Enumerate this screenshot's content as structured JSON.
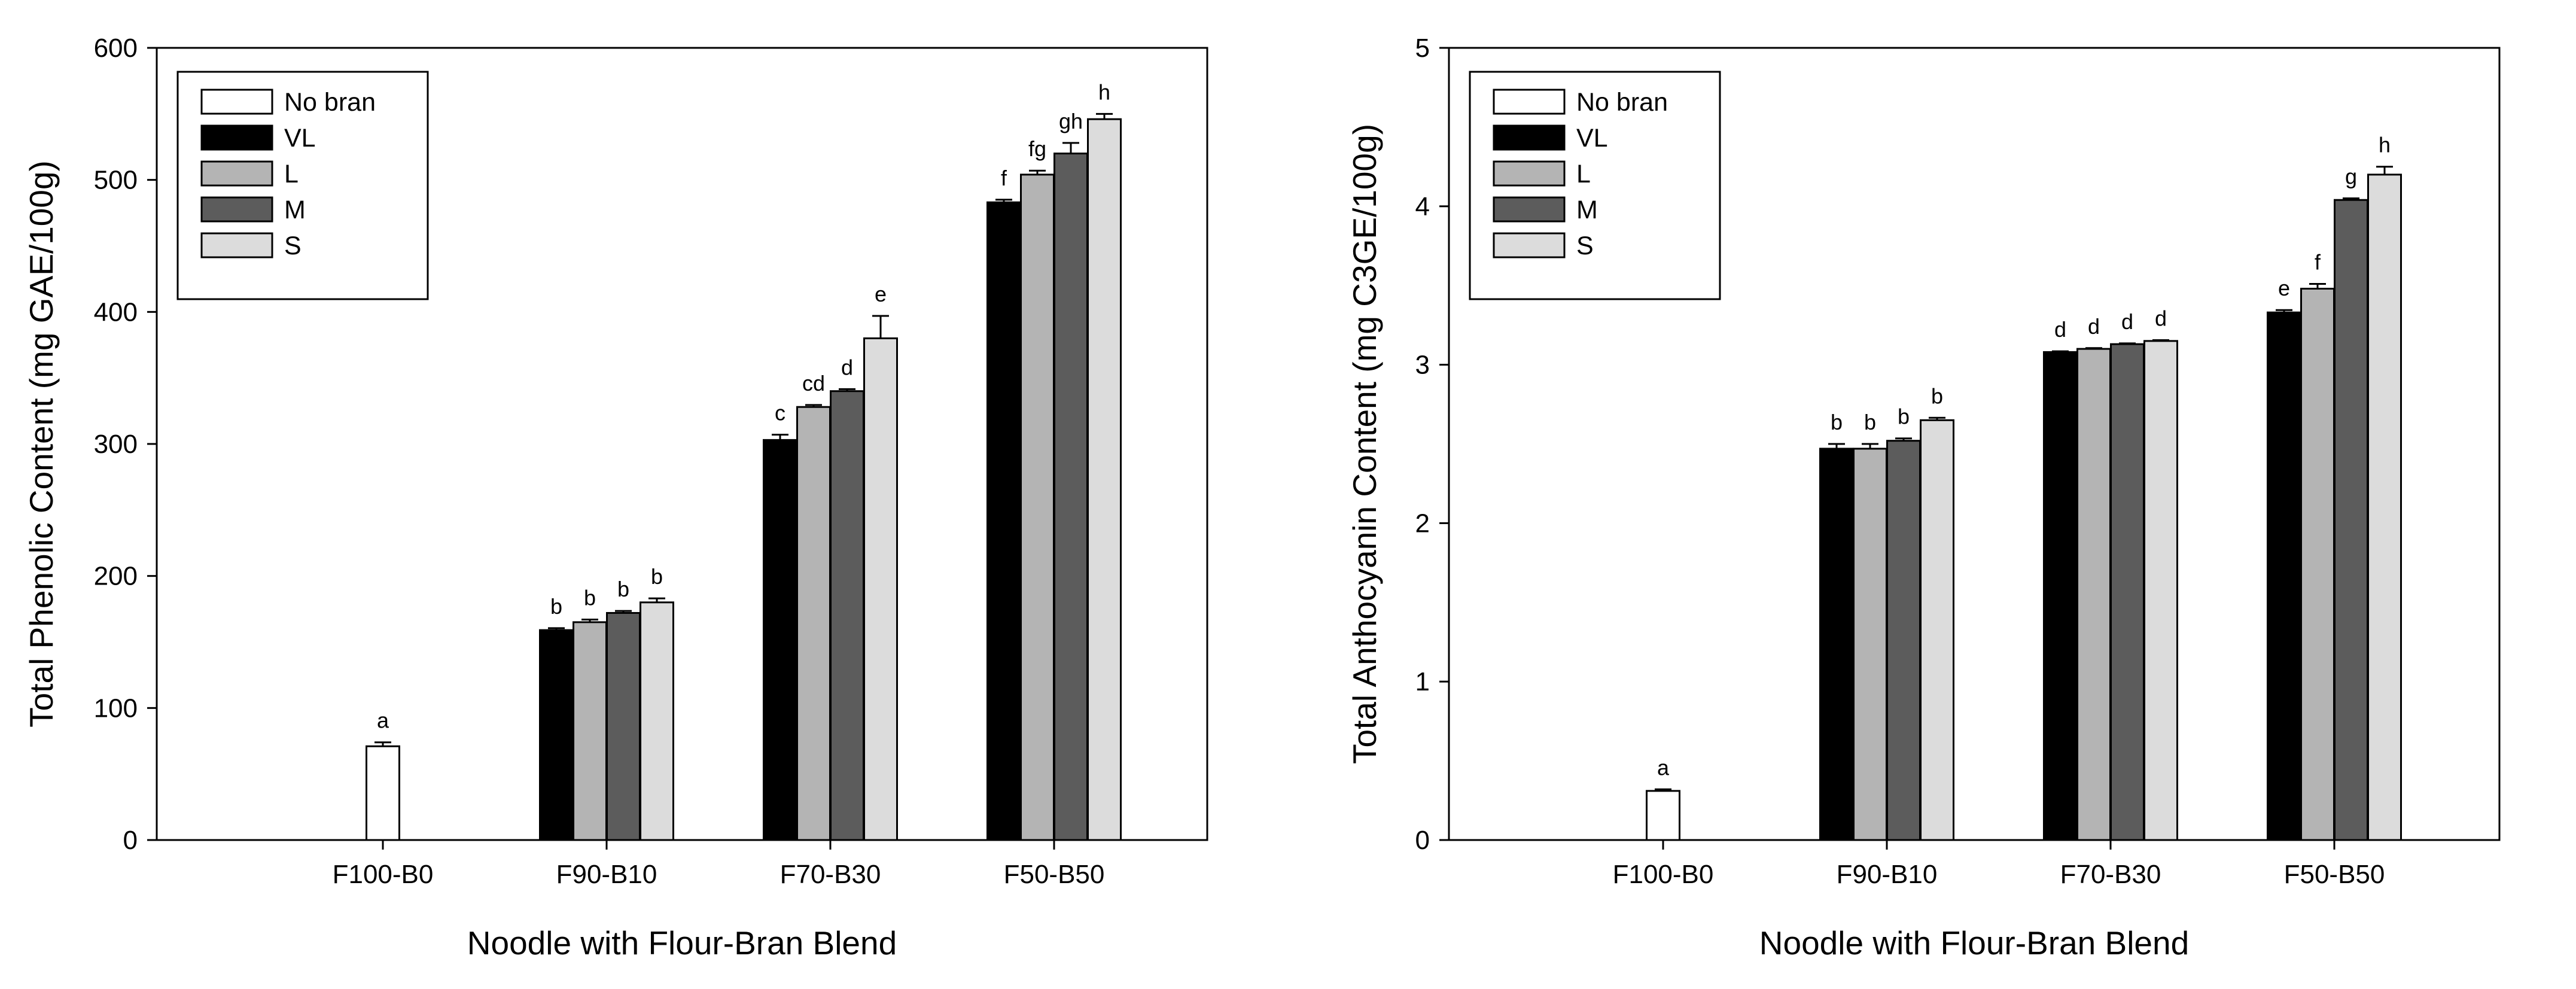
{
  "charts": [
    {
      "chart_data": {
        "type": "bar",
        "categories": [
          "F100-B0",
          "F90-B10",
          "F70-B30",
          "F50-B50"
        ],
        "xlabel": "Noodle with Flour-Bran Blend",
        "ylabel": "Total Phenolic Content (mg GAE/100g)",
        "ylim": [
          0,
          600
        ],
        "yticks": [
          0,
          100,
          200,
          300,
          400,
          500,
          600
        ],
        "grid": false,
        "legend_position": "top-left",
        "series": [
          {
            "name": "No bran",
            "color": "#ffffff",
            "values": [
              71,
              null,
              null,
              null
            ],
            "errors": [
              3,
              null,
              null,
              null
            ],
            "labels": [
              "a",
              "",
              "",
              ""
            ]
          },
          {
            "name": "VL",
            "color": "#000000",
            "values": [
              null,
              159,
              303,
              483
            ],
            "errors": [
              null,
              1.5,
              4,
              2
            ],
            "labels": [
              "",
              "b",
              "c",
              "f"
            ]
          },
          {
            "name": "L",
            "color": "#b4b4b4",
            "values": [
              null,
              165,
              328,
              504
            ],
            "errors": [
              null,
              2,
              1.5,
              3
            ],
            "labels": [
              "",
              "b",
              "cd",
              "fg"
            ]
          },
          {
            "name": "M",
            "color": "#5c5c5c",
            "values": [
              null,
              172,
              340,
              520
            ],
            "errors": [
              null,
              1.5,
              1.5,
              8
            ],
            "labels": [
              "",
              "b",
              "d",
              "gh"
            ]
          },
          {
            "name": "S",
            "color": "#dcdcdc",
            "values": [
              null,
              180,
              380,
              546
            ],
            "errors": [
              null,
              3,
              17,
              4
            ],
            "labels": [
              "",
              "b",
              "e",
              "h"
            ]
          }
        ]
      }
    },
    {
      "chart_data": {
        "type": "bar",
        "categories": [
          "F100-B0",
          "F90-B10",
          "F70-B30",
          "F50-B50"
        ],
        "xlabel": "Noodle with Flour-Bran Blend",
        "ylabel": "Total Anthocyanin Content (mg C3GE/100g)",
        "ylim": [
          0,
          5
        ],
        "yticks": [
          0,
          1,
          2,
          3,
          4,
          5
        ],
        "grid": false,
        "legend_position": "top-left",
        "series": [
          {
            "name": "No bran",
            "color": "#ffffff",
            "values": [
              0.31,
              null,
              null,
              null
            ],
            "errors": [
              0.01,
              null,
              null,
              null
            ],
            "labels": [
              "a",
              "",
              "",
              ""
            ]
          },
          {
            "name": "VL",
            "color": "#000000",
            "values": [
              null,
              2.47,
              3.08,
              3.33
            ],
            "errors": [
              null,
              0.03,
              0.005,
              0.015
            ],
            "labels": [
              "",
              "b",
              "d",
              "e"
            ]
          },
          {
            "name": "L",
            "color": "#b4b4b4",
            "values": [
              null,
              2.47,
              3.1,
              3.48
            ],
            "errors": [
              null,
              0.03,
              0.005,
              0.03
            ],
            "labels": [
              "",
              "b",
              "d",
              "f"
            ]
          },
          {
            "name": "M",
            "color": "#5c5c5c",
            "values": [
              null,
              2.52,
              3.13,
              4.04
            ],
            "errors": [
              null,
              0.015,
              0.005,
              0.01
            ],
            "labels": [
              "",
              "b",
              "d",
              "g"
            ]
          },
          {
            "name": "S",
            "color": "#dcdcdc",
            "values": [
              null,
              2.65,
              3.15,
              4.2
            ],
            "errors": [
              null,
              0.015,
              0.005,
              0.05
            ],
            "labels": [
              "",
              "b",
              "d",
              "h"
            ]
          }
        ]
      }
    }
  ]
}
